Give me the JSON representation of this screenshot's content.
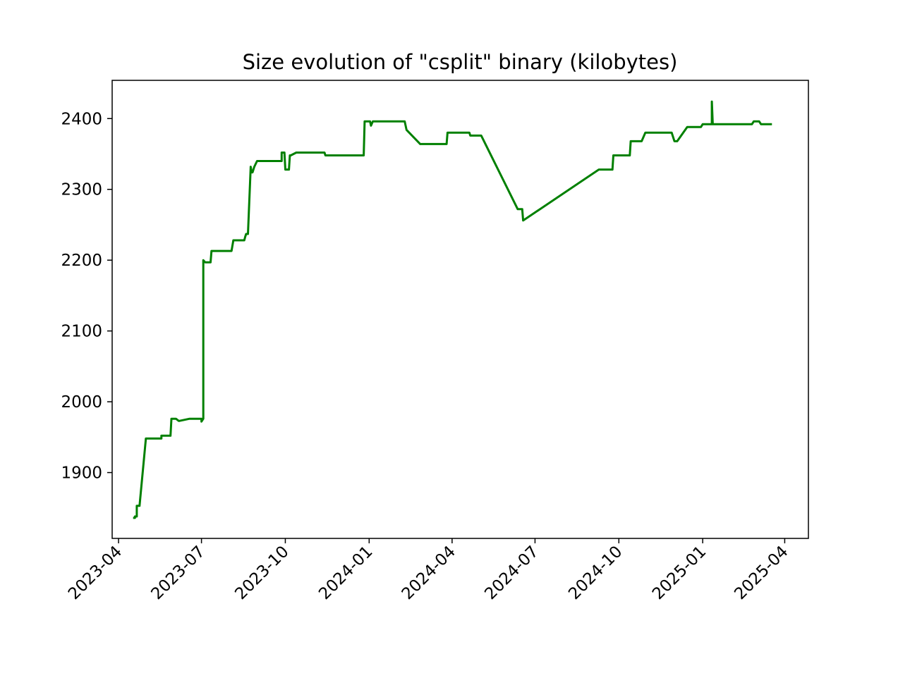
{
  "chart_data": {
    "type": "line",
    "title": "Size evolution of \"csplit\" binary (kilobytes)",
    "xlabel": "",
    "ylabel": "",
    "grid": false,
    "line_color": "#008000",
    "xlim": [
      "2023-03-25",
      "2025-04-27"
    ],
    "ylim": [
      1807,
      2454
    ],
    "x_ticks": [
      "2023-04",
      "2023-07",
      "2023-10",
      "2024-01",
      "2024-04",
      "2024-07",
      "2024-10",
      "2025-01",
      "2025-04"
    ],
    "y_ticks": [
      1900,
      2000,
      2100,
      2200,
      2300,
      2400
    ],
    "series": [
      {
        "x": [
          "2023-04-17",
          "2023-04-19",
          "2023-04-19",
          "2023-04-21",
          "2023-04-21",
          "2023-04-24",
          "2023-05-01",
          "2023-05-18",
          "2023-05-18",
          "2023-05-27",
          "2023-05-28",
          "2023-05-29",
          "2023-06-01",
          "2023-06-03",
          "2023-06-06",
          "2023-06-07",
          "2023-06-18",
          "2023-07-01",
          "2023-07-01",
          "2023-07-03",
          "2023-07-03",
          "2023-07-05",
          "2023-07-11",
          "2023-07-12",
          "2023-07-12",
          "2023-08-03",
          "2023-08-05",
          "2023-08-06",
          "2023-08-17",
          "2023-08-18",
          "2023-08-19",
          "2023-08-21",
          "2023-08-24",
          "2023-08-25",
          "2023-08-26",
          "2023-08-28",
          "2023-08-31",
          "2023-09-03",
          "2023-09-27",
          "2023-09-27",
          "2023-09-30",
          "2023-10-01",
          "2023-10-05",
          "2023-10-06",
          "2023-10-07",
          "2023-10-13",
          "2023-11-13",
          "2023-11-14",
          "2023-12-26",
          "2023-12-27",
          "2024-01-02",
          "2024-01-03",
          "2024-01-05",
          "2024-02-09",
          "2024-02-11",
          "2024-02-26",
          "2024-03-26",
          "2024-03-27",
          "2024-04-20",
          "2024-04-21",
          "2024-05-03",
          "2024-06-12",
          "2024-06-17",
          "2024-06-18",
          "2024-09-09",
          "2024-09-24",
          "2024-09-25",
          "2024-10-13",
          "2024-10-14",
          "2024-10-26",
          "2024-10-30",
          "2024-11-28",
          "2024-12-01",
          "2024-12-04",
          "2024-12-15",
          "2024-12-30",
          "2025-01-01",
          "2025-01-01",
          "2025-01-11",
          "2025-01-11",
          "2025-01-12",
          "2025-02-24",
          "2025-02-26",
          "2025-03-04",
          "2025-03-06",
          "2025-03-18"
        ],
        "y": [
          1836,
          1836,
          1838,
          1838,
          1853,
          1853,
          1948,
          1948,
          1952,
          1952,
          1952,
          1976,
          1976,
          1976,
          1973,
          1973,
          1976,
          1976,
          1972,
          1976,
          2200,
          2197,
          2197,
          2213,
          2213,
          2213,
          2228,
          2228,
          2228,
          2233,
          2237,
          2237,
          2332,
          2324,
          2324,
          2332,
          2340,
          2340,
          2340,
          2352,
          2352,
          2328,
          2328,
          2348,
          2348,
          2352,
          2352,
          2348,
          2348,
          2396,
          2396,
          2390,
          2396,
          2396,
          2384,
          2364,
          2364,
          2380,
          2380,
          2376,
          2376,
          2272,
          2272,
          2256,
          2328,
          2328,
          2348,
          2348,
          2368,
          2368,
          2380,
          2380,
          2368,
          2368,
          2388,
          2388,
          2392,
          2392,
          2392,
          2424,
          2392,
          2392,
          2396,
          2396,
          2392,
          2392
        ]
      }
    ]
  }
}
